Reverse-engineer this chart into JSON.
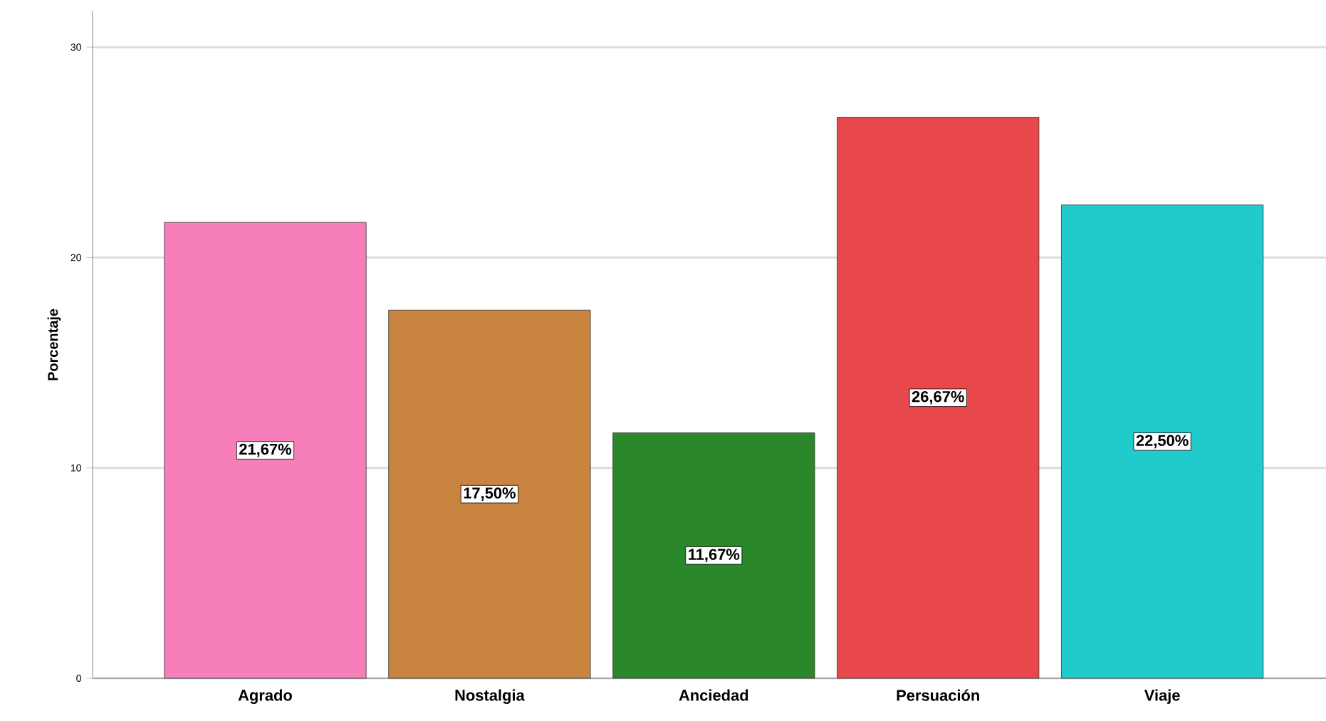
{
  "chart_data": {
    "type": "bar",
    "ylabel": "Porcentaje",
    "categories": [
      "Agrado",
      "Nostalgia",
      "Anciedad",
      "Persuación",
      "Viaje"
    ],
    "values": [
      21.67,
      17.5,
      11.67,
      26.67,
      22.5
    ],
    "colors": [
      "#f77fb9",
      "#c9843f",
      "#2a872a",
      "#e8484c",
      "#1fcbcb"
    ],
    "value_labels": [
      "21,67%",
      "17,50%",
      "11,67%",
      "26,67%",
      "22,50%"
    ],
    "ylim": [
      0,
      31.7
    ],
    "yticks": [
      0,
      10,
      20,
      30
    ],
    "grid": "y"
  }
}
